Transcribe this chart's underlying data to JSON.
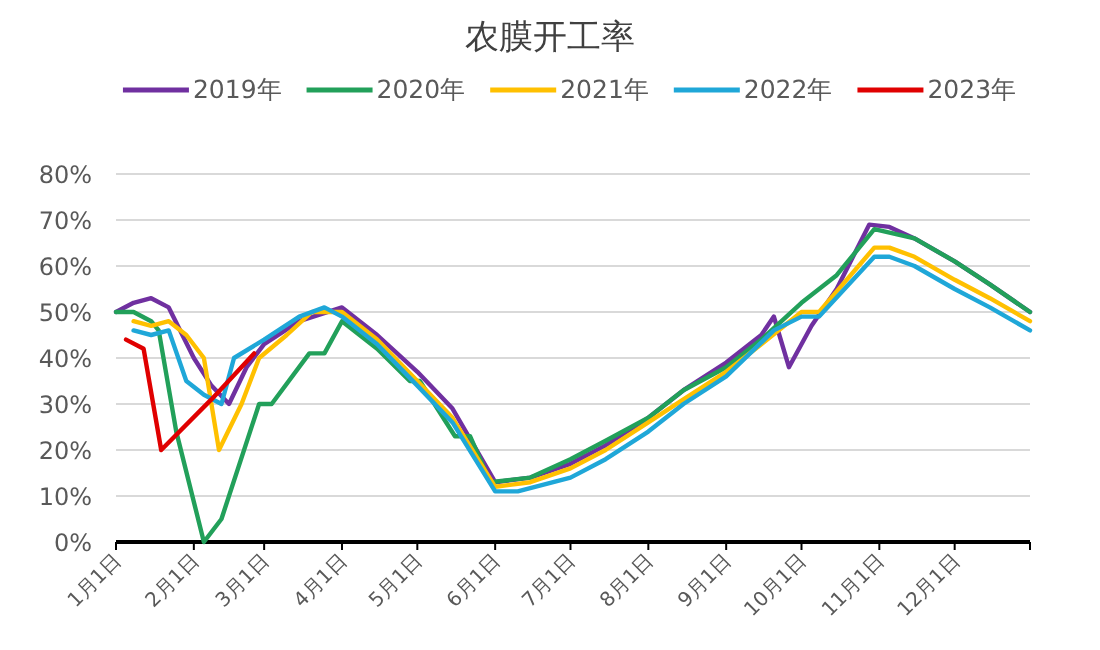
{
  "chart_data": {
    "type": "line",
    "title": "农膜开工率",
    "xlim": [
      "--01-01",
      "--12-31"
    ],
    "ylim": [
      0,
      80
    ],
    "xticks": [
      {
        "value": "--01-01",
        "label": "1月1日"
      },
      {
        "value": "--02-01",
        "label": "2月1日"
      },
      {
        "value": "--03-01",
        "label": "3月1日"
      },
      {
        "value": "--04-01",
        "label": "4月1日"
      },
      {
        "value": "--05-01",
        "label": "5月1日"
      },
      {
        "value": "--06-01",
        "label": "6月1日"
      },
      {
        "value": "--07-01",
        "label": "7月1日"
      },
      {
        "value": "--08-01",
        "label": "8月1日"
      },
      {
        "value": "--09-01",
        "label": "9月1日"
      },
      {
        "value": "--10-01",
        "label": "10月1日"
      },
      {
        "value": "--11-01",
        "label": "11月1日"
      },
      {
        "value": "--12-01",
        "label": "12月1日"
      }
    ],
    "yticks": [
      {
        "value": 0,
        "label": "0%"
      },
      {
        "value": 10,
        "label": "10%"
      },
      {
        "value": 20,
        "label": "20%"
      },
      {
        "value": 30,
        "label": "30%"
      },
      {
        "value": 40,
        "label": "40%"
      },
      {
        "value": 50,
        "label": "50%"
      },
      {
        "value": 60,
        "label": "60%"
      },
      {
        "value": 70,
        "label": "70%"
      },
      {
        "value": 80,
        "label": "80%"
      }
    ],
    "grid": "y",
    "legend": "top",
    "series": [
      {
        "name": "2019年",
        "color": "#7030a0",
        "x": [
          "--01-01",
          "--01-08",
          "--01-15",
          "--01-22",
          "--02-01",
          "--02-08",
          "--02-15",
          "--02-22",
          "--03-01",
          "--03-15",
          "--04-01",
          "--04-15",
          "--05-01",
          "--05-15",
          "--06-01",
          "--06-15",
          "--07-01",
          "--07-15",
          "--08-01",
          "--08-15",
          "--09-01",
          "--09-15",
          "--09-20",
          "--09-26",
          "--10-05",
          "--10-15",
          "--10-28",
          "--11-05",
          "--11-15",
          "--12-01",
          "--12-15",
          "--12-31"
        ],
        "values": [
          50,
          52,
          53,
          51,
          40,
          34,
          30,
          38,
          43,
          48,
          51,
          45,
          37,
          29,
          13,
          14,
          17,
          21,
          27,
          33,
          39,
          45,
          49,
          38,
          47,
          55,
          69,
          68.5,
          66,
          61,
          56,
          50
        ]
      },
      {
        "name": "2020年",
        "color": "#22a05a",
        "x": [
          "--01-01",
          "--01-08",
          "--01-15",
          "--01-18",
          "--01-25",
          "--02-05",
          "--02-12",
          "--02-27",
          "--03-04",
          "--03-19",
          "--03-25",
          "--04-01",
          "--04-15",
          "--04-28",
          "--05-02",
          "--05-16",
          "--05-22",
          "--05-30",
          "--06-15",
          "--07-01",
          "--07-15",
          "--08-01",
          "--08-15",
          "--09-01",
          "--09-15",
          "--10-01",
          "--10-15",
          "--10-30",
          "--11-15",
          "--12-01",
          "--12-15",
          "--12-31"
        ],
        "values": [
          50,
          50,
          48,
          46,
          24,
          0,
          5,
          30,
          30,
          41,
          41,
          48,
          42,
          35,
          35,
          23,
          23,
          13,
          14,
          18,
          22,
          27,
          33,
          38,
          44,
          52,
          58,
          68,
          66,
          61,
          56,
          50
        ]
      },
      {
        "name": "2021年",
        "color": "#ffc000",
        "x": [
          "--01-08",
          "--01-15",
          "--01-22",
          "--01-29",
          "--02-05",
          "--02-11",
          "--02-20",
          "--02-27",
          "--03-10",
          "--03-20",
          "--04-01",
          "--04-15",
          "--05-01",
          "--05-15",
          "--06-01",
          "--06-15",
          "--07-01",
          "--07-15",
          "--08-01",
          "--08-15",
          "--09-01",
          "--09-15",
          "--10-01",
          "--10-08",
          "--10-30",
          "--11-05",
          "--11-15",
          "--12-01",
          "--12-15",
          "--12-31"
        ],
        "values": [
          48,
          47,
          48,
          45,
          40,
          20,
          30,
          40,
          45,
          50,
          50,
          44,
          35,
          27,
          12,
          13,
          16,
          20,
          26,
          31,
          37,
          43,
          50,
          50,
          64,
          64,
          62,
          57,
          53,
          48
        ]
      },
      {
        "name": "2022年",
        "color": "#1fa7d8",
        "x": [
          "--01-08",
          "--01-15",
          "--01-22",
          "--01-29",
          "--02-05",
          "--02-12",
          "--02-17",
          "--03-01",
          "--03-15",
          "--03-25",
          "--04-01",
          "--04-15",
          "--05-01",
          "--05-15",
          "--06-01",
          "--06-10",
          "--07-01",
          "--07-15",
          "--08-01",
          "--08-15",
          "--09-01",
          "--09-20",
          "--10-01",
          "--10-08",
          "--10-30",
          "--11-05",
          "--11-15",
          "--12-01",
          "--12-15",
          "--12-31"
        ],
        "values": [
          46,
          45,
          46,
          35,
          32,
          30,
          40,
          44,
          49,
          51,
          49,
          43,
          34,
          26,
          11,
          11,
          14,
          18,
          24,
          30,
          36,
          46,
          49,
          49,
          62,
          62,
          60,
          55,
          51,
          46
        ]
      },
      {
        "name": "2023年",
        "color": "#e00000",
        "x": [
          "--01-05",
          "--01-12",
          "--01-19",
          "--02-08",
          "--02-25"
        ],
        "values": [
          44,
          42,
          20,
          31,
          41
        ]
      }
    ]
  }
}
